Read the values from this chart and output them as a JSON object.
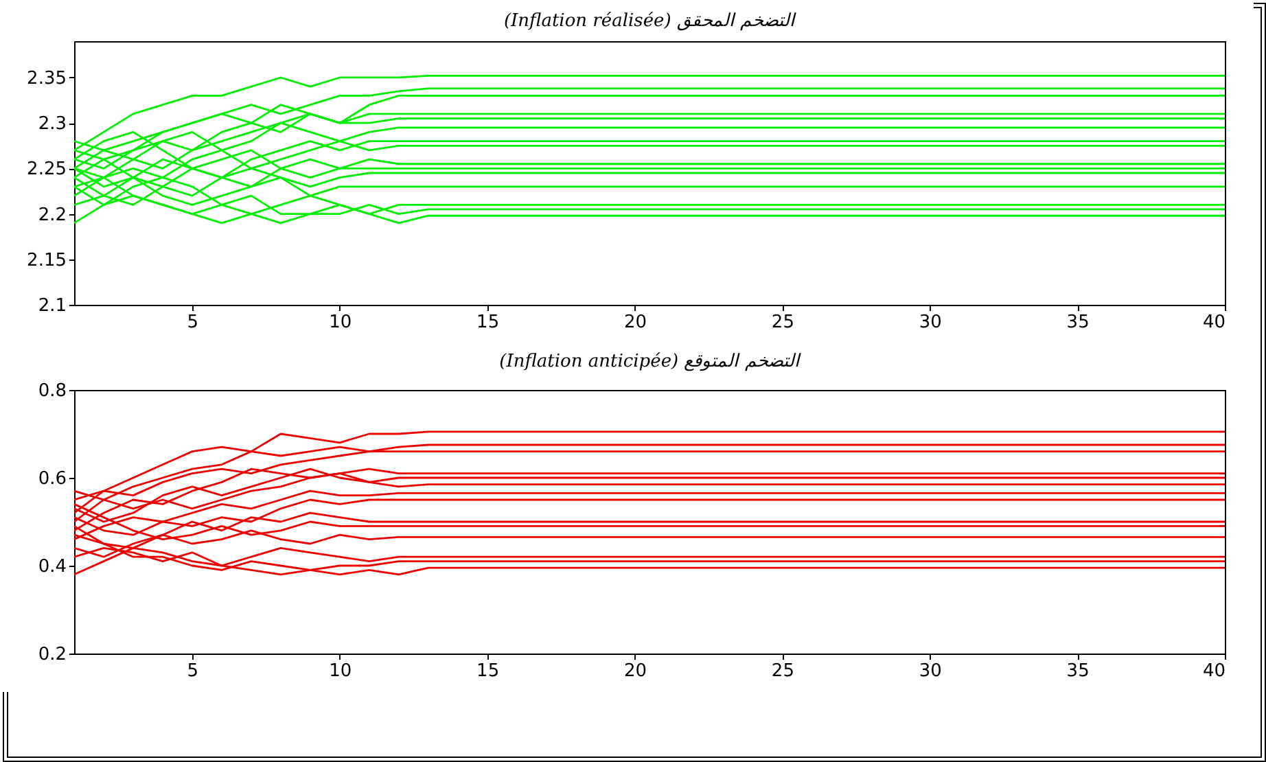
{
  "chart_data": [
    {
      "type": "line",
      "title": "(Inflation réalisée) التضخم المحقق",
      "x": [
        1,
        2,
        3,
        4,
        5,
        6,
        7,
        8,
        9,
        10,
        11,
        12,
        13,
        40
      ],
      "xlim": [
        1,
        40
      ],
      "xticks": [
        5,
        10,
        15,
        20,
        25,
        30,
        35,
        40
      ],
      "ylim": [
        2.1,
        2.39
      ],
      "yticks": [
        2.1,
        2.15,
        2.2,
        2.25,
        2.3,
        2.35
      ],
      "grid": false,
      "legend": false,
      "series": [
        {
          "color": "#00ee00",
          "values": [
            2.27,
            2.29,
            2.31,
            2.32,
            2.33,
            2.33,
            2.34,
            2.35,
            2.34,
            2.35,
            2.35,
            2.35,
            2.352,
            2.352
          ]
        },
        {
          "color": "#00ee00",
          "values": [
            2.25,
            2.27,
            2.28,
            2.29,
            2.3,
            2.31,
            2.32,
            2.31,
            2.32,
            2.33,
            2.33,
            2.335,
            2.338,
            2.338
          ]
        },
        {
          "color": "#00ee00",
          "values": [
            2.24,
            2.26,
            2.27,
            2.28,
            2.27,
            2.29,
            2.3,
            2.32,
            2.31,
            2.3,
            2.32,
            2.33,
            2.33,
            2.33
          ]
        },
        {
          "color": "#00ee00",
          "values": [
            2.26,
            2.25,
            2.27,
            2.29,
            2.3,
            2.31,
            2.3,
            2.29,
            2.31,
            2.3,
            2.31,
            2.31,
            2.31,
            2.31
          ]
        },
        {
          "color": "#00ee00",
          "values": [
            2.23,
            2.24,
            2.26,
            2.25,
            2.27,
            2.28,
            2.29,
            2.3,
            2.31,
            2.3,
            2.3,
            2.305,
            2.305,
            2.305
          ]
        },
        {
          "color": "#00ee00",
          "values": [
            2.28,
            2.27,
            2.26,
            2.28,
            2.29,
            2.27,
            2.28,
            2.3,
            2.29,
            2.28,
            2.29,
            2.295,
            2.295,
            2.295
          ]
        },
        {
          "color": "#00ee00",
          "values": [
            2.25,
            2.23,
            2.24,
            2.26,
            2.25,
            2.24,
            2.26,
            2.27,
            2.28,
            2.27,
            2.28,
            2.28,
            2.28,
            2.28
          ]
        },
        {
          "color": "#00ee00",
          "values": [
            2.22,
            2.24,
            2.25,
            2.24,
            2.26,
            2.27,
            2.25,
            2.26,
            2.27,
            2.28,
            2.27,
            2.275,
            2.275,
            2.275
          ]
        },
        {
          "color": "#00ee00",
          "values": [
            2.26,
            2.28,
            2.29,
            2.27,
            2.25,
            2.26,
            2.27,
            2.25,
            2.24,
            2.25,
            2.26,
            2.255,
            2.255,
            2.255
          ]
        },
        {
          "color": "#00ee00",
          "values": [
            2.24,
            2.22,
            2.21,
            2.23,
            2.25,
            2.24,
            2.23,
            2.25,
            2.26,
            2.25,
            2.25,
            2.25,
            2.25,
            2.25
          ]
        },
        {
          "color": "#00ee00",
          "values": [
            2.27,
            2.26,
            2.24,
            2.23,
            2.22,
            2.24,
            2.25,
            2.24,
            2.23,
            2.24,
            2.245,
            2.245,
            2.245,
            2.245
          ]
        },
        {
          "color": "#00ee00",
          "values": [
            2.21,
            2.22,
            2.24,
            2.22,
            2.21,
            2.22,
            2.23,
            2.24,
            2.22,
            2.23,
            2.23,
            2.23,
            2.23,
            2.23
          ]
        },
        {
          "color": "#00ee00",
          "values": [
            2.23,
            2.21,
            2.22,
            2.21,
            2.2,
            2.19,
            2.2,
            2.21,
            2.22,
            2.21,
            2.2,
            2.21,
            2.21,
            2.21
          ]
        },
        {
          "color": "#00ee00",
          "values": [
            2.19,
            2.21,
            2.23,
            2.24,
            2.23,
            2.21,
            2.2,
            2.19,
            2.2,
            2.2,
            2.21,
            2.2,
            2.205,
            2.205
          ]
        },
        {
          "color": "#00ee00",
          "values": [
            2.25,
            2.24,
            2.22,
            2.21,
            2.2,
            2.21,
            2.22,
            2.2,
            2.2,
            2.21,
            2.2,
            2.19,
            2.198,
            2.198
          ]
        }
      ]
    },
    {
      "type": "line",
      "title": "(Inflation anticipée) التضخم المتوقع",
      "x": [
        1,
        2,
        3,
        4,
        5,
        6,
        7,
        8,
        9,
        10,
        11,
        12,
        13,
        40
      ],
      "xlim": [
        1,
        40
      ],
      "xticks": [
        5,
        10,
        15,
        20,
        25,
        30,
        35,
        40
      ],
      "ylim": [
        0.2,
        0.8
      ],
      "yticks": [
        0.2,
        0.4,
        0.6,
        0.8
      ],
      "grid": false,
      "legend": false,
      "series": [
        {
          "color": "#ee0000",
          "values": [
            0.52,
            0.57,
            0.6,
            0.63,
            0.66,
            0.67,
            0.66,
            0.7,
            0.69,
            0.68,
            0.7,
            0.7,
            0.705,
            0.705
          ]
        },
        {
          "color": "#ee0000",
          "values": [
            0.5,
            0.55,
            0.58,
            0.6,
            0.62,
            0.63,
            0.66,
            0.65,
            0.66,
            0.67,
            0.66,
            0.67,
            0.675,
            0.675
          ]
        },
        {
          "color": "#ee0000",
          "values": [
            0.55,
            0.57,
            0.56,
            0.59,
            0.61,
            0.62,
            0.61,
            0.63,
            0.64,
            0.65,
            0.66,
            0.66,
            0.66,
            0.66
          ]
        },
        {
          "color": "#ee0000",
          "values": [
            0.48,
            0.52,
            0.55,
            0.54,
            0.57,
            0.59,
            0.62,
            0.61,
            0.6,
            0.61,
            0.62,
            0.61,
            0.61,
            0.61
          ]
        },
        {
          "color": "#ee0000",
          "values": [
            0.53,
            0.5,
            0.52,
            0.56,
            0.58,
            0.56,
            0.58,
            0.6,
            0.62,
            0.6,
            0.59,
            0.6,
            0.6,
            0.6
          ]
        },
        {
          "color": "#ee0000",
          "values": [
            0.57,
            0.55,
            0.53,
            0.55,
            0.53,
            0.55,
            0.57,
            0.58,
            0.6,
            0.61,
            0.59,
            0.58,
            0.585,
            0.585
          ]
        },
        {
          "color": "#ee0000",
          "values": [
            0.46,
            0.49,
            0.51,
            0.5,
            0.52,
            0.54,
            0.53,
            0.55,
            0.57,
            0.56,
            0.56,
            0.565,
            0.565,
            0.565
          ]
        },
        {
          "color": "#ee0000",
          "values": [
            0.51,
            0.48,
            0.47,
            0.5,
            0.49,
            0.51,
            0.5,
            0.53,
            0.55,
            0.54,
            0.55,
            0.55,
            0.55,
            0.55
          ]
        },
        {
          "color": "#ee0000",
          "values": [
            0.49,
            0.45,
            0.44,
            0.47,
            0.5,
            0.48,
            0.51,
            0.5,
            0.52,
            0.51,
            0.5,
            0.5,
            0.5,
            0.5
          ]
        },
        {
          "color": "#ee0000",
          "values": [
            0.54,
            0.51,
            0.48,
            0.46,
            0.47,
            0.49,
            0.47,
            0.48,
            0.5,
            0.49,
            0.49,
            0.49,
            0.49,
            0.49
          ]
        },
        {
          "color": "#ee0000",
          "values": [
            0.44,
            0.42,
            0.45,
            0.47,
            0.45,
            0.46,
            0.48,
            0.46,
            0.45,
            0.47,
            0.46,
            0.465,
            0.465,
            0.465
          ]
        },
        {
          "color": "#ee0000",
          "values": [
            0.42,
            0.44,
            0.43,
            0.41,
            0.43,
            0.4,
            0.42,
            0.44,
            0.43,
            0.42,
            0.41,
            0.42,
            0.42,
            0.42
          ]
        },
        {
          "color": "#ee0000",
          "values": [
            0.47,
            0.45,
            0.42,
            0.42,
            0.4,
            0.39,
            0.41,
            0.4,
            0.39,
            0.4,
            0.4,
            0.41,
            0.41,
            0.41
          ]
        },
        {
          "color": "#ee0000",
          "values": [
            0.38,
            0.41,
            0.44,
            0.43,
            0.41,
            0.4,
            0.39,
            0.38,
            0.39,
            0.38,
            0.39,
            0.38,
            0.395,
            0.395
          ]
        }
      ]
    }
  ]
}
